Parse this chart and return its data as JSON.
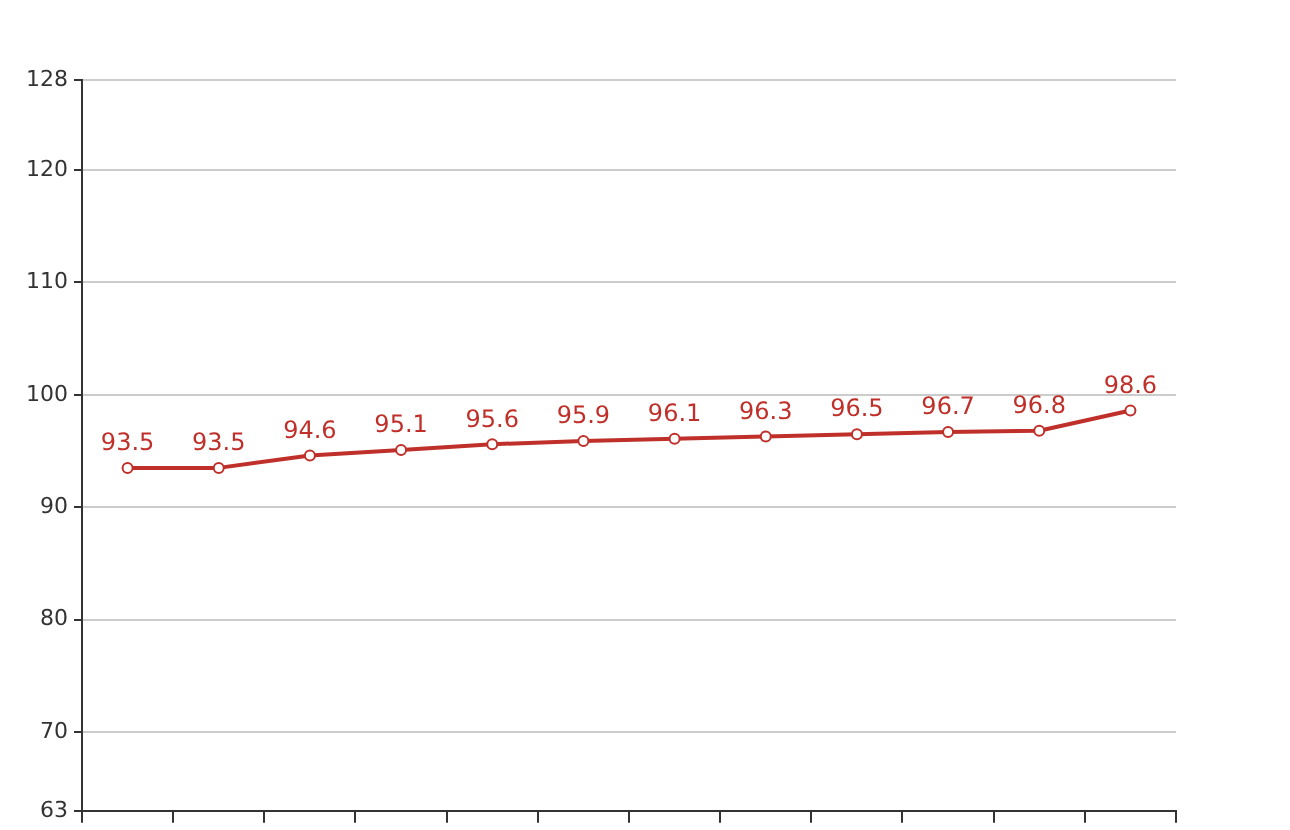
{
  "chart_data": {
    "type": "line",
    "categories": [
      null,
      null,
      null,
      null,
      null,
      null,
      null,
      null,
      null,
      null,
      null,
      null
    ],
    "series": [
      {
        "color": "#c0302a",
        "values": [
          93.5,
          93.5,
          94.6,
          95.1,
          95.6,
          95.9,
          96.1,
          96.3,
          96.5,
          96.7,
          96.8,
          98.6
        ]
      }
    ],
    "ylim": [
      63,
      128
    ],
    "yticks": [
      63,
      70,
      80,
      90,
      100,
      110,
      120,
      128
    ],
    "grid": "y",
    "legend": false,
    "marker": "circle",
    "line_style": "solid",
    "data_labels": true
  }
}
